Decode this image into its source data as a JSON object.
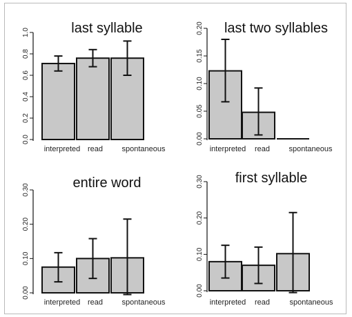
{
  "chart_data": [
    {
      "type": "bar",
      "title": "last syllable",
      "categories": [
        "interpreted",
        "read",
        "spontaneous"
      ],
      "values": [
        0.71,
        0.76,
        0.76
      ],
      "error_low": [
        0.64,
        0.68,
        0.6
      ],
      "error_high": [
        0.78,
        0.84,
        0.92
      ],
      "ylim": [
        0,
        1.0
      ],
      "yticks": [
        "0.0",
        "0.2",
        "0.4",
        "0.6",
        "0.8",
        "1.0"
      ],
      "ytick_values": [
        0,
        0.2,
        0.4,
        0.6,
        0.8,
        1.0
      ],
      "bar_color": "#c8c8c8"
    },
    {
      "type": "bar",
      "title": "last two syllables",
      "categories": [
        "interpreted",
        "read",
        "spontaneous"
      ],
      "values": [
        0.123,
        0.048,
        0.0
      ],
      "error_low": [
        0.067,
        0.007,
        0.0
      ],
      "error_high": [
        0.18,
        0.092,
        0.0
      ],
      "ylim": [
        0,
        0.2
      ],
      "yticks": [
        "0.00",
        "0.05",
        "0.10",
        "0.15",
        "0.20"
      ],
      "ytick_values": [
        0,
        0.05,
        0.1,
        0.15,
        0.2
      ],
      "bar_color": "#c8c8c8"
    },
    {
      "type": "bar",
      "title": "entire word",
      "categories": [
        "interpreted",
        "read",
        "spontaneous"
      ],
      "values": [
        0.075,
        0.1,
        0.102
      ],
      "error_low": [
        0.032,
        0.042,
        -0.005
      ],
      "error_high": [
        0.117,
        0.158,
        0.215
      ],
      "ylim": [
        0,
        0.3
      ],
      "yticks": [
        "0.00",
        "0.10",
        "0.20",
        "0.30"
      ],
      "ytick_values": [
        0,
        0.1,
        0.2,
        0.3
      ],
      "bar_color": "#c8c8c8"
    },
    {
      "type": "bar",
      "title": "first syllable",
      "categories": [
        "interpreted",
        "read",
        "spontaneous"
      ],
      "values": [
        0.08,
        0.07,
        0.102
      ],
      "error_low": [
        0.035,
        0.02,
        -0.005
      ],
      "error_high": [
        0.125,
        0.12,
        0.215
      ],
      "ylim": [
        0,
        0.3
      ],
      "yticks": [
        "0.00",
        "0.10",
        "0.20",
        "0.30"
      ],
      "ytick_values": [
        0,
        0.1,
        0.2,
        0.3
      ],
      "bar_color": "#c8c8c8"
    }
  ]
}
